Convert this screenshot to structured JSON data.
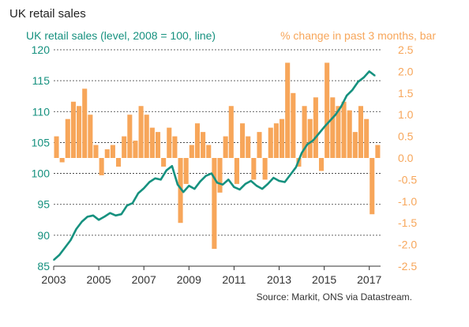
{
  "colors": {
    "line": "#16917f",
    "bar": "#f7a65a",
    "grid": "#333333",
    "text": "#333333"
  },
  "chart_data": {
    "type": "bar+line",
    "title": "UK retail sales",
    "left_axis_label": "UK retail sales (level, 2008 = 100, line)",
    "right_axis_label": "% change in past 3 months, bar",
    "source": "Source: Markit,  ONS via Datastream.",
    "x_range": [
      2003.0,
      2017.5
    ],
    "x_ticks": [
      "2003",
      "2005",
      "2007",
      "2009",
      "2011",
      "2013",
      "2015",
      "2017"
    ],
    "left_axis": {
      "range": [
        85,
        120
      ],
      "ticks": [
        "85",
        "90",
        "95",
        "100",
        "105",
        "110",
        "115",
        "120"
      ]
    },
    "right_axis": {
      "range": [
        -2.5,
        2.5
      ],
      "ticks": [
        "-2.5",
        "-2.0",
        "-1.5",
        "-1.0",
        "-0.5",
        "0.0",
        "0.5",
        "1.0",
        "1.5",
        "2.0",
        "2.5"
      ]
    },
    "grid": "horizontal dashed at left-axis ticks",
    "series": [
      {
        "name": "UK retail sales (level, 2008 = 100, line)",
        "type": "line",
        "axis": "left",
        "x": [
          2003.0,
          2003.25,
          2003.5,
          2003.75,
          2004.0,
          2004.25,
          2004.5,
          2004.75,
          2005.0,
          2005.25,
          2005.5,
          2005.75,
          2006.0,
          2006.25,
          2006.5,
          2006.75,
          2007.0,
          2007.25,
          2007.5,
          2007.75,
          2008.0,
          2008.25,
          2008.5,
          2008.75,
          2009.0,
          2009.25,
          2009.5,
          2009.75,
          2010.0,
          2010.25,
          2010.5,
          2010.75,
          2011.0,
          2011.25,
          2011.5,
          2011.75,
          2012.0,
          2012.25,
          2012.5,
          2012.75,
          2013.0,
          2013.25,
          2013.5,
          2013.75,
          2014.0,
          2014.25,
          2014.5,
          2014.75,
          2015.0,
          2015.25,
          2015.5,
          2015.75,
          2016.0,
          2016.25,
          2016.5,
          2016.75,
          2017.0,
          2017.25
        ],
        "values": [
          86.0,
          86.8,
          88.0,
          89.2,
          91.0,
          92.2,
          93.0,
          93.2,
          92.5,
          93.0,
          93.6,
          93.2,
          93.4,
          94.8,
          95.2,
          96.8,
          97.6,
          98.6,
          99.2,
          99.0,
          100.5,
          101.2,
          98.2,
          97.0,
          98.0,
          97.5,
          98.7,
          99.6,
          100.0,
          98.5,
          98.2,
          99.0,
          97.8,
          97.4,
          98.3,
          98.8,
          98.0,
          97.5,
          98.3,
          99.3,
          98.8,
          98.6,
          99.8,
          101.0,
          103.3,
          104.7,
          105.3,
          106.4,
          107.5,
          108.5,
          109.5,
          110.8,
          112.6,
          113.5,
          114.8,
          115.5,
          116.5,
          115.8
        ]
      },
      {
        "name": "% change in past 3 months, bar",
        "type": "bar",
        "axis": "right",
        "x": [
          2003.0,
          2003.25,
          2003.5,
          2003.75,
          2004.0,
          2004.25,
          2004.5,
          2004.75,
          2005.0,
          2005.25,
          2005.5,
          2005.75,
          2006.0,
          2006.25,
          2006.5,
          2006.75,
          2007.0,
          2007.25,
          2007.5,
          2007.75,
          2008.0,
          2008.25,
          2008.5,
          2008.75,
          2009.0,
          2009.25,
          2009.5,
          2009.75,
          2010.0,
          2010.25,
          2010.5,
          2010.75,
          2011.0,
          2011.25,
          2011.5,
          2011.75,
          2012.0,
          2012.25,
          2012.5,
          2012.75,
          2013.0,
          2013.25,
          2013.5,
          2013.75,
          2014.0,
          2014.25,
          2014.5,
          2014.75,
          2015.0,
          2015.25,
          2015.5,
          2015.75,
          2016.0,
          2016.25,
          2016.5,
          2016.75,
          2017.0,
          2017.25
        ],
        "values": [
          0.5,
          -0.1,
          0.9,
          1.3,
          1.2,
          1.6,
          1.0,
          0.3,
          -0.4,
          0.2,
          0.3,
          -0.2,
          0.5,
          1.0,
          0.4,
          1.2,
          1.0,
          0.7,
          0.6,
          -0.2,
          0.7,
          0.5,
          -1.5,
          -0.6,
          0.3,
          0.8,
          0.6,
          0.3,
          -2.1,
          -0.8,
          0.5,
          1.2,
          -0.6,
          0.8,
          0.5,
          -0.5,
          0.6,
          -0.5,
          0.7,
          0.8,
          0.9,
          2.2,
          1.5,
          -0.2,
          1.2,
          0.9,
          1.4,
          -0.3,
          2.2,
          1.4,
          1.2,
          1.3,
          1.1,
          0.6,
          1.2,
          0.9,
          -1.3,
          0.3
        ]
      }
    ]
  }
}
